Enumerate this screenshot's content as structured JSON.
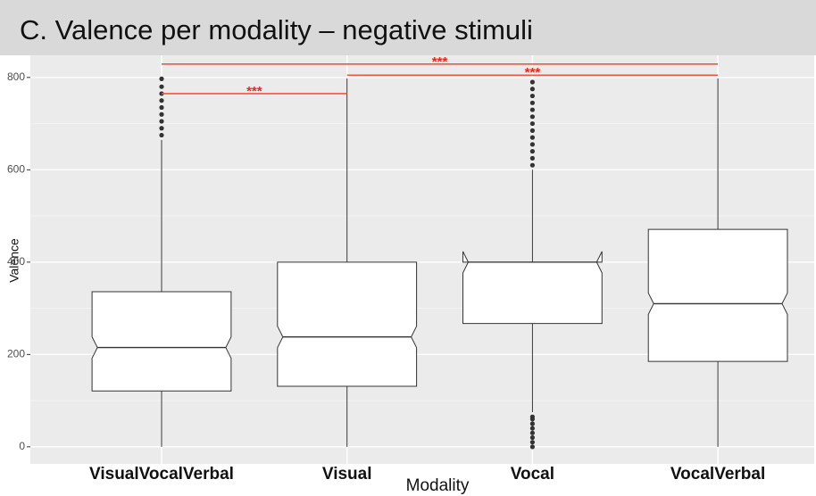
{
  "chart_data": {
    "type": "box",
    "title": "C. Valence per modality – negative stimuli",
    "xlabel": "Modality",
    "ylabel": "Valence",
    "categories": [
      "VisualVocalVerbal",
      "Visual",
      "Vocal",
      "VocalVerbal"
    ],
    "boxes": [
      {
        "low": 0,
        "q1": 121,
        "median": 215,
        "q3": 336,
        "high": 665,
        "outliers": [
          675,
          690,
          705,
          720,
          735,
          750,
          765,
          780,
          797
        ]
      },
      {
        "low": 0,
        "q1": 131,
        "median": 238,
        "q3": 400,
        "high": 798,
        "outliers": []
      },
      {
        "low": 75,
        "q1": 267,
        "median": 400,
        "q3": 400,
        "high": 600,
        "outliers": [
          0,
          10,
          20,
          30,
          40,
          50,
          60,
          65,
          610,
          625,
          640,
          655,
          670,
          685,
          700,
          715,
          730,
          745,
          760,
          775,
          790
        ]
      },
      {
        "low": 0,
        "q1": 185,
        "median": 310,
        "q3": 471,
        "high": 798,
        "outliers": []
      }
    ],
    "annotations": [
      {
        "text": "***",
        "from": 0,
        "to": 1,
        "y": 765
      },
      {
        "text": "***",
        "from": 1,
        "to": 3,
        "y": 805
      },
      {
        "text": "***",
        "from": 0,
        "to": 3,
        "y": 829
      }
    ],
    "annotation_color": "#f0563f",
    "box_fill": "#ffffff",
    "box_stroke": "#333333",
    "panel_color": "#ebebeb",
    "ylim": [
      -37,
      848
    ],
    "yticks": [
      0,
      200,
      400,
      600,
      800
    ],
    "grid": true
  }
}
